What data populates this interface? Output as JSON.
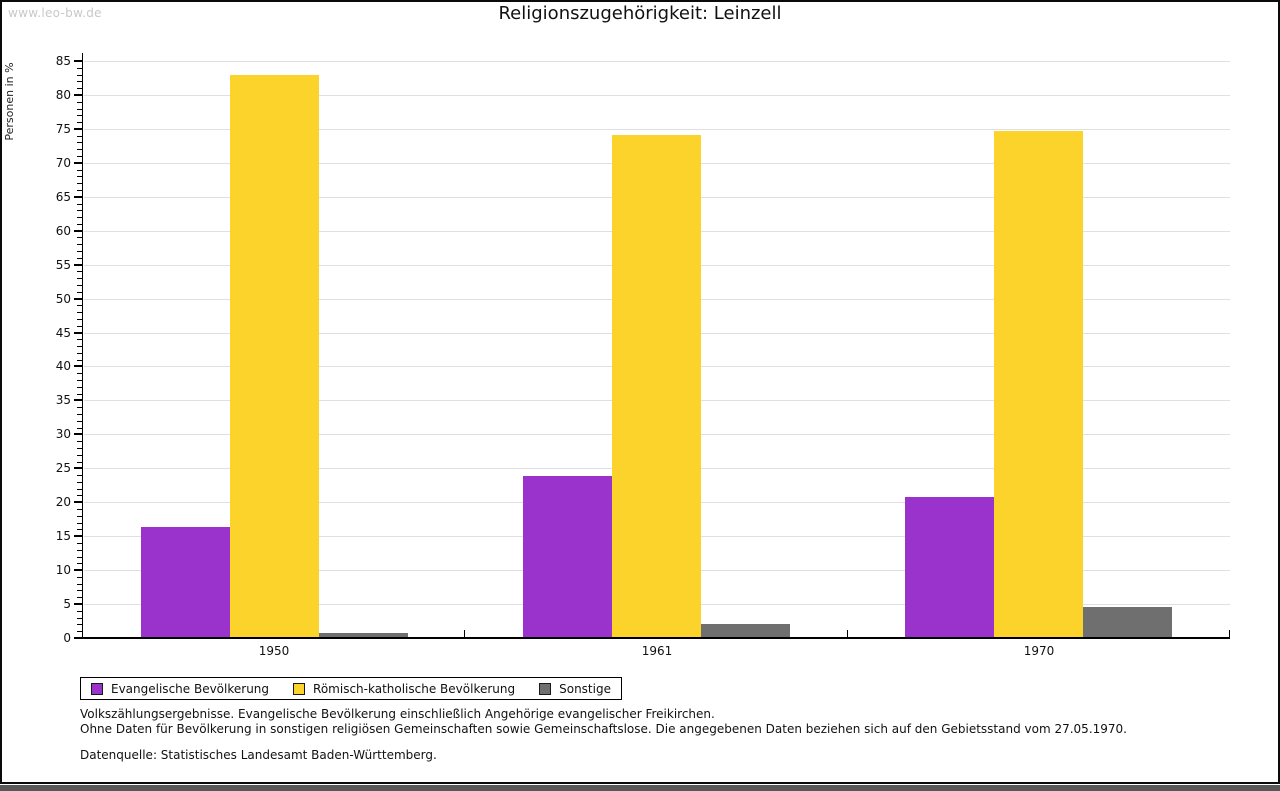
{
  "page": {
    "watermark": "www.leo-bw.de"
  },
  "chart_data": {
    "type": "bar",
    "title": "Religionszugehörigkeit: Leinzell",
    "xlabel": "",
    "ylabel": "Personen in %",
    "ylim": [
      0,
      85
    ],
    "ytick_step": 5,
    "ytick_minor_step": 1,
    "grid": true,
    "legend_position": "bottom-left",
    "categories": [
      "1950",
      "1961",
      "1970"
    ],
    "series": [
      {
        "name": "Evangelische Bevölkerung",
        "color": "#9933cc",
        "values": [
          16.4,
          23.9,
          20.7
        ]
      },
      {
        "name": "Römisch-katholische Bevölkerung",
        "color": "#fcd32b",
        "values": [
          82.9,
          74.1,
          74.7
        ]
      },
      {
        "name": "Sonstige",
        "color": "#6f6f6f",
        "values": [
          0.7,
          2.0,
          4.6
        ]
      }
    ]
  },
  "footnotes": {
    "line1": "Volkszählungsergebnisse. Evangelische Bevölkerung einschließlich Angehörige evangelischer Freikirchen.",
    "line2": "Ohne Daten für Bevölkerung in sonstigen religiösen Gemeinschaften sowie Gemeinschaftslose. Die angegebenen Daten beziehen sich auf den Gebietsstand vom 27.05.1970.",
    "source": "Datenquelle: Statistisches Landesamt Baden-Württemberg."
  },
  "colors": {
    "grid": "#e0e0e0",
    "axis": "#000000",
    "watermark": "#c8c8c8",
    "bottom_bar": "#58585a"
  }
}
